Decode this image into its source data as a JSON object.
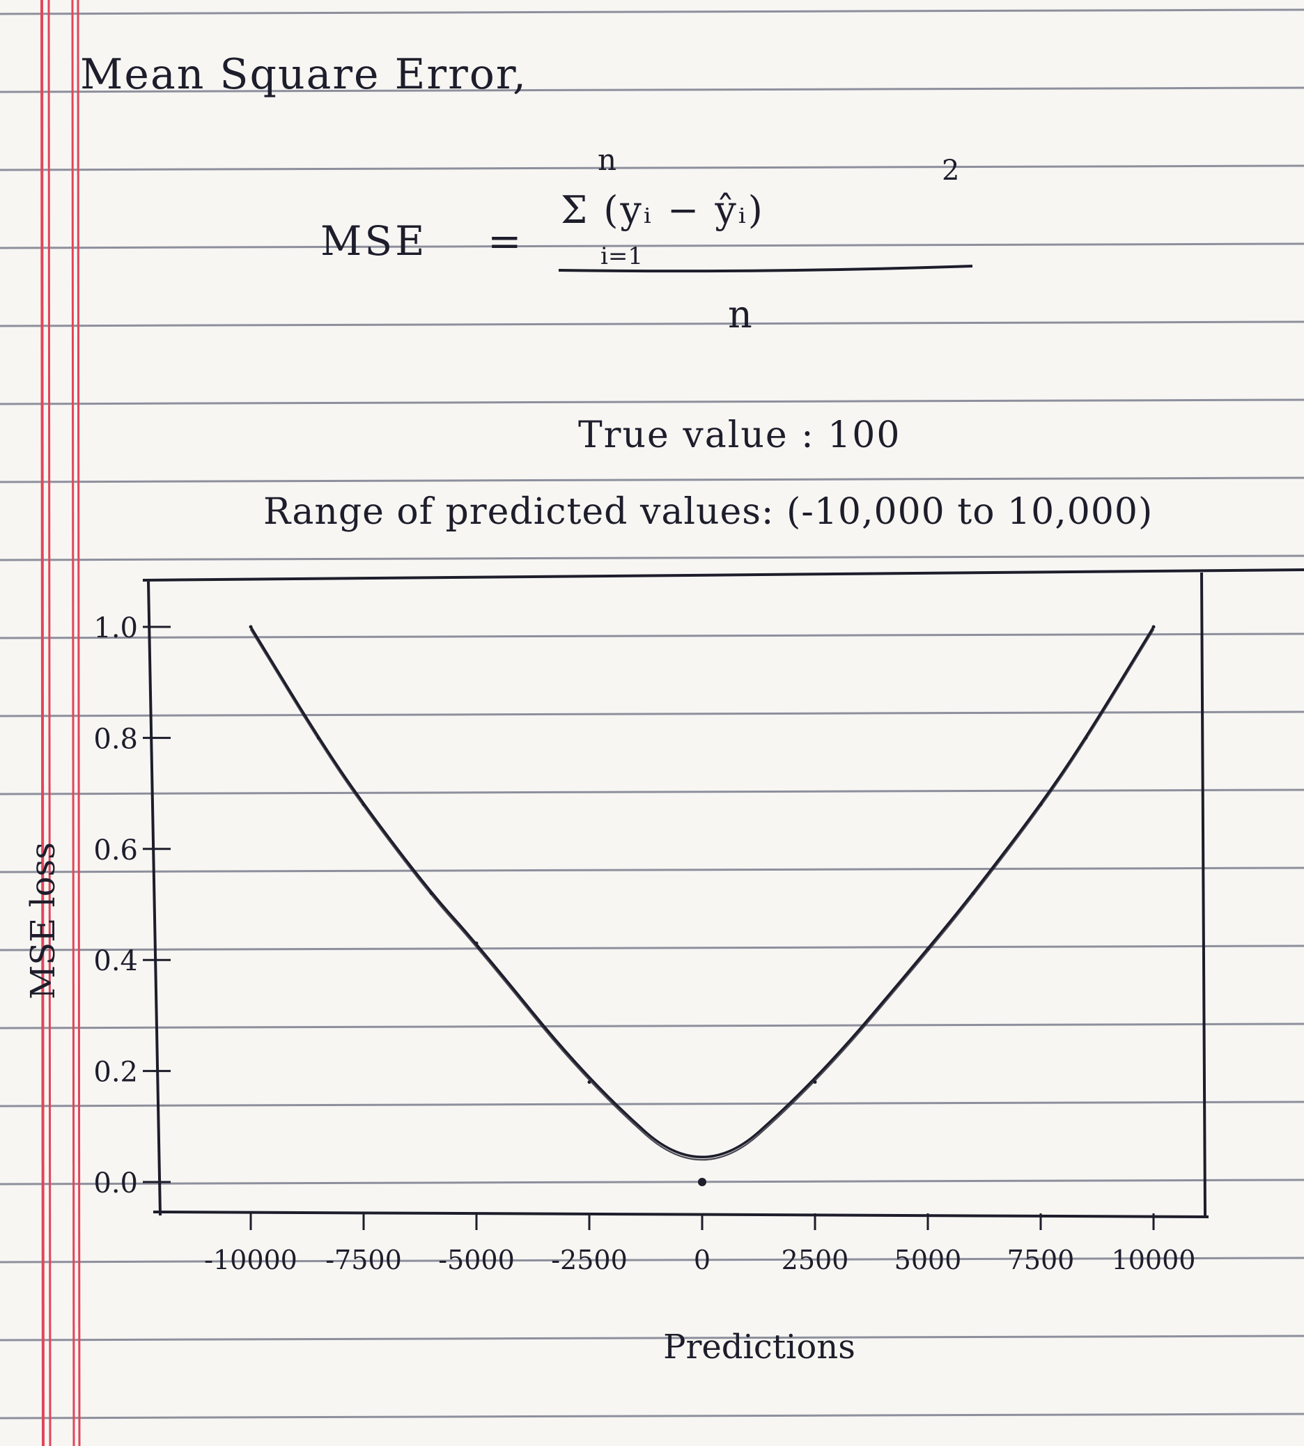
{
  "heading": "Mean Square Error,",
  "formula": {
    "lhs": "MSE",
    "equals": "=",
    "sum_upper": "n",
    "sum_lower": "i=1",
    "numerator": "Σ (yᵢ − ŷᵢ)",
    "exponent": "2",
    "denominator": "n"
  },
  "true_value": "True value : 100",
  "range_text": "Range of predicted values: (-10,000 to 10,000)",
  "colors": {
    "ink": "#1d1d2b",
    "rule_line": "#8d8f9c",
    "margin_line": "#e0465a",
    "paper": "#f7f6f3"
  },
  "chart_data": {
    "type": "line",
    "title": "",
    "xlabel": "Predictions",
    "ylabel": "MSE loss",
    "xlim": [
      -10000,
      10000
    ],
    "ylim": [
      0,
      1.0
    ],
    "x_ticks": [
      "-10000",
      "-7500",
      "-5000",
      "-2500",
      "0",
      "2500",
      "5000",
      "7500",
      "10000"
    ],
    "y_ticks": [
      "0.0",
      "0.2",
      "0.4",
      "0.6",
      "0.8",
      "1.0"
    ],
    "grid": false,
    "series": [
      {
        "x": [
          -10000,
          -8500,
          -7500,
          -6000,
          -5000,
          -2500,
          0,
          2500,
          5000,
          6000,
          7500,
          8500,
          10000
        ],
        "y": [
          1.0,
          0.8,
          0.68,
          0.52,
          0.43,
          0.18,
          0.0,
          0.18,
          0.42,
          0.52,
          0.68,
          0.8,
          1.0
        ]
      }
    ]
  }
}
